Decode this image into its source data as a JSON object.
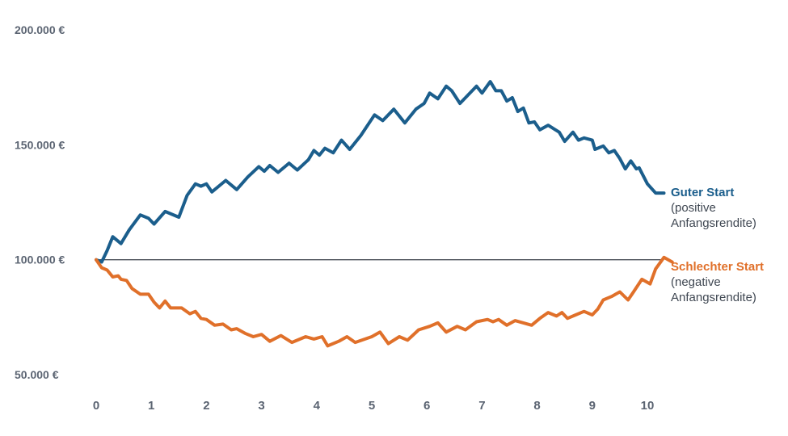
{
  "chart_data": {
    "type": "line",
    "title": "",
    "xlabel": "",
    "ylabel": "",
    "xlim": [
      0,
      10
    ],
    "ylim": [
      50000,
      200000
    ],
    "x_ticks": [
      "0",
      "1",
      "2",
      "3",
      "4",
      "5",
      "6",
      "7",
      "8",
      "9",
      "10"
    ],
    "y_ticks": [
      {
        "value": 200000,
        "label": "200.000 €"
      },
      {
        "value": 150000,
        "label": "150.000 €"
      },
      {
        "value": 100000,
        "label": "100.000 €"
      },
      {
        "value": 50000,
        "label": "50.000 €"
      }
    ],
    "reference_line": 100000,
    "grid": false,
    "series": [
      {
        "name": "Guter Start",
        "note": "(positive Anfangsrendite)",
        "color": "#1b5e8c",
        "points": [
          [
            0.0,
            100000
          ],
          [
            0.1,
            99000
          ],
          [
            0.2,
            104000
          ],
          [
            0.3,
            110000
          ],
          [
            0.45,
            107000
          ],
          [
            0.6,
            113000
          ],
          [
            0.8,
            119500
          ],
          [
            0.95,
            118000
          ],
          [
            1.05,
            115500
          ],
          [
            1.25,
            121000
          ],
          [
            1.5,
            118500
          ],
          [
            1.65,
            128000
          ],
          [
            1.8,
            133000
          ],
          [
            1.9,
            132000
          ],
          [
            2.0,
            133000
          ],
          [
            2.1,
            129500
          ],
          [
            2.25,
            132500
          ],
          [
            2.35,
            134500
          ],
          [
            2.55,
            130500
          ],
          [
            2.75,
            136000
          ],
          [
            2.95,
            140500
          ],
          [
            3.05,
            138500
          ],
          [
            3.15,
            141000
          ],
          [
            3.3,
            138000
          ],
          [
            3.5,
            142000
          ],
          [
            3.65,
            139000
          ],
          [
            3.85,
            143500
          ],
          [
            3.95,
            147500
          ],
          [
            4.05,
            145500
          ],
          [
            4.15,
            148500
          ],
          [
            4.3,
            146500
          ],
          [
            4.45,
            152000
          ],
          [
            4.6,
            148000
          ],
          [
            4.8,
            154000
          ],
          [
            5.05,
            163000
          ],
          [
            5.2,
            160500
          ],
          [
            5.4,
            165500
          ],
          [
            5.6,
            159500
          ],
          [
            5.8,
            165500
          ],
          [
            5.95,
            168000
          ],
          [
            6.05,
            172500
          ],
          [
            6.2,
            170000
          ],
          [
            6.35,
            175500
          ],
          [
            6.45,
            173500
          ],
          [
            6.6,
            168000
          ],
          [
            6.9,
            175500
          ],
          [
            7.0,
            172500
          ],
          [
            7.15,
            177500
          ],
          [
            7.25,
            173500
          ],
          [
            7.35,
            173500
          ],
          [
            7.45,
            169000
          ],
          [
            7.55,
            170500
          ],
          [
            7.65,
            164500
          ],
          [
            7.75,
            166000
          ],
          [
            7.85,
            159500
          ],
          [
            7.95,
            160000
          ],
          [
            8.05,
            156500
          ],
          [
            8.2,
            158500
          ],
          [
            8.3,
            157000
          ],
          [
            8.4,
            155500
          ],
          [
            8.5,
            151500
          ],
          [
            8.65,
            155500
          ],
          [
            8.75,
            152000
          ],
          [
            8.85,
            153000
          ],
          [
            9.0,
            152000
          ],
          [
            9.05,
            148000
          ],
          [
            9.2,
            149500
          ],
          [
            9.3,
            146500
          ],
          [
            9.4,
            147500
          ],
          [
            9.5,
            144000
          ],
          [
            9.6,
            139500
          ],
          [
            9.7,
            143000
          ],
          [
            9.8,
            139500
          ],
          [
            9.85,
            140000
          ],
          [
            10.0,
            133000
          ],
          [
            10.15,
            129000
          ],
          [
            10.3,
            129000
          ]
        ]
      },
      {
        "name": "Schlechter Start",
        "note": "(negative Anfangsrendite)",
        "color": "#e0702a",
        "points": [
          [
            0.0,
            100000
          ],
          [
            0.1,
            96500
          ],
          [
            0.2,
            95500
          ],
          [
            0.3,
            92500
          ],
          [
            0.4,
            93000
          ],
          [
            0.45,
            91500
          ],
          [
            0.55,
            91000
          ],
          [
            0.65,
            87500
          ],
          [
            0.8,
            85000
          ],
          [
            0.95,
            85000
          ],
          [
            1.05,
            81500
          ],
          [
            1.15,
            79000
          ],
          [
            1.25,
            82000
          ],
          [
            1.35,
            79000
          ],
          [
            1.55,
            79000
          ],
          [
            1.7,
            76500
          ],
          [
            1.8,
            77500
          ],
          [
            1.9,
            74500
          ],
          [
            2.0,
            74000
          ],
          [
            2.15,
            71500
          ],
          [
            2.3,
            72000
          ],
          [
            2.45,
            69500
          ],
          [
            2.55,
            70000
          ],
          [
            2.7,
            68000
          ],
          [
            2.85,
            66500
          ],
          [
            3.0,
            67500
          ],
          [
            3.15,
            64500
          ],
          [
            3.35,
            67000
          ],
          [
            3.55,
            64000
          ],
          [
            3.8,
            66500
          ],
          [
            3.95,
            65500
          ],
          [
            4.1,
            66500
          ],
          [
            4.2,
            62500
          ],
          [
            4.4,
            64500
          ],
          [
            4.55,
            66500
          ],
          [
            4.7,
            64000
          ],
          [
            5.0,
            66500
          ],
          [
            5.15,
            68500
          ],
          [
            5.3,
            63500
          ],
          [
            5.5,
            66500
          ],
          [
            5.65,
            65000
          ],
          [
            5.85,
            69500
          ],
          [
            6.05,
            71000
          ],
          [
            6.2,
            72500
          ],
          [
            6.35,
            68500
          ],
          [
            6.55,
            71000
          ],
          [
            6.7,
            69500
          ],
          [
            6.9,
            73000
          ],
          [
            7.1,
            74000
          ],
          [
            7.2,
            73000
          ],
          [
            7.3,
            74000
          ],
          [
            7.45,
            71500
          ],
          [
            7.6,
            73500
          ],
          [
            7.75,
            72500
          ],
          [
            7.9,
            71500
          ],
          [
            8.05,
            74500
          ],
          [
            8.2,
            77000
          ],
          [
            8.35,
            75500
          ],
          [
            8.45,
            77000
          ],
          [
            8.55,
            74500
          ],
          [
            8.7,
            76000
          ],
          [
            8.85,
            77500
          ],
          [
            9.0,
            76000
          ],
          [
            9.1,
            78500
          ],
          [
            9.2,
            82500
          ],
          [
            9.35,
            84000
          ],
          [
            9.5,
            86000
          ],
          [
            9.65,
            82500
          ],
          [
            9.75,
            86000
          ],
          [
            9.9,
            91500
          ],
          [
            10.05,
            89500
          ],
          [
            10.15,
            96000
          ],
          [
            10.3,
            101000
          ],
          [
            10.45,
            99000
          ]
        ]
      }
    ]
  }
}
